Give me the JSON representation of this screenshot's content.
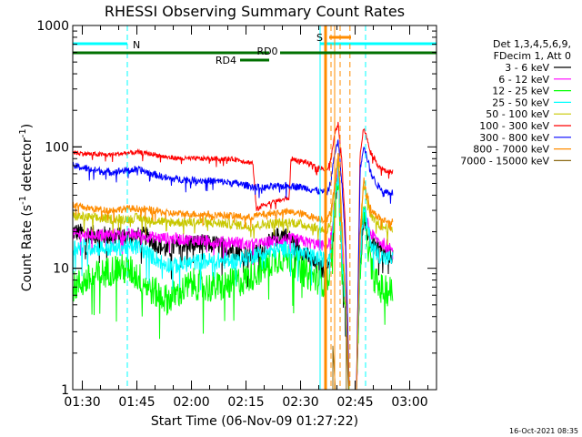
{
  "chart_data": {
    "type": "line",
    "title": "RHESSI Observing Summary Count Rates",
    "xlabel": "Start Time (06-Nov-09 01:27:22)",
    "ylabel": "Count Rate (s",
    "ylabel_sup": "-1",
    "ylabel_tail": " detector",
    "ylabel_sup2": "-1",
    "ylabel_close": ")",
    "yscale": "log",
    "xlim_minutes": [
      0,
      100
    ],
    "ylim": [
      1,
      1000
    ],
    "x_ticks": [
      {
        "minute": 2.63,
        "label": "01:30"
      },
      {
        "minute": 17.63,
        "label": "01:45"
      },
      {
        "minute": 32.63,
        "label": "02:00"
      },
      {
        "minute": 47.63,
        "label": "02:15"
      },
      {
        "minute": 62.63,
        "label": "02:30"
      },
      {
        "minute": 77.63,
        "label": "02:45"
      },
      {
        "minute": 92.63,
        "label": "03:00"
      }
    ],
    "y_ticks": [
      {
        "value": 1,
        "label": "1"
      },
      {
        "value": 10,
        "label": "10"
      },
      {
        "value": 100,
        "label": "100"
      },
      {
        "value": 1000,
        "label": "1000"
      }
    ],
    "legend_header": [
      "Det 1,3,4,5,6,9,",
      "FDecim 1, Att 0"
    ],
    "annotations": {
      "night": "N",
      "saa": "S",
      "rd0": "RD0",
      "rd4": "RD4"
    },
    "footer_timestamp": "16-Oct-2021 08:35",
    "flag_colors": {
      "night": "#00ffff",
      "saa": "#ff8c00",
      "decimation": "#007000"
    },
    "night_segments": [
      [
        0,
        15
      ],
      [
        68,
        100
      ]
    ],
    "night_boundaries": [
      0,
      15,
      68,
      80.5
    ],
    "saa_segment": [
      70.5,
      73.5
    ],
    "saa_lines": [
      69.5,
      72.0
    ],
    "rd0_segments": [
      [
        0,
        54
      ],
      [
        57,
        100
      ]
    ],
    "rd4_segment": [
      46,
      54
    ],
    "series": [
      {
        "name": "3 - 6 keV",
        "color": "#000000",
        "noise": 0.08,
        "points": [
          [
            0,
            20
          ],
          [
            5,
            19
          ],
          [
            10,
            18.5
          ],
          [
            15,
            18
          ],
          [
            20,
            18.5
          ],
          [
            23,
            16
          ],
          [
            26,
            14
          ],
          [
            30,
            16
          ],
          [
            35,
            16
          ],
          [
            40,
            15.5
          ],
          [
            45,
            14
          ],
          [
            48,
            13
          ],
          [
            50,
            13
          ],
          [
            52,
            14
          ],
          [
            54,
            16
          ],
          [
            56,
            18
          ],
          [
            58,
            19
          ],
          [
            60,
            17
          ],
          [
            62,
            15
          ],
          [
            64,
            13
          ],
          [
            66,
            11
          ],
          [
            68,
            10
          ],
          [
            70,
            10
          ],
          [
            71,
            14
          ],
          [
            72,
            30
          ],
          [
            73,
            60
          ],
          [
            74,
            12
          ],
          [
            75,
            5
          ],
          [
            76,
            1
          ]
        ]
      },
      {
        "name": "3 - 6 keV",
        "color": "#000000",
        "noise": 0.08,
        "points": [
          [
            78,
            1
          ],
          [
            79,
            10
          ],
          [
            80,
            25
          ],
          [
            82,
            16
          ],
          [
            84,
            14
          ],
          [
            86,
            13
          ],
          [
            88,
            13
          ]
        ]
      },
      {
        "name": "6 - 12 keV",
        "color": "#ff00ff",
        "noise": 0.05,
        "points": [
          [
            0,
            19
          ],
          [
            10,
            19
          ],
          [
            18,
            19
          ],
          [
            22,
            18
          ],
          [
            28,
            17.5
          ],
          [
            35,
            17
          ],
          [
            40,
            16.5
          ],
          [
            45,
            16.5
          ],
          [
            48,
            15.5
          ],
          [
            52,
            16
          ],
          [
            56,
            17
          ],
          [
            60,
            17.5
          ],
          [
            64,
            16.5
          ],
          [
            68,
            15.5
          ],
          [
            70,
            15
          ],
          [
            71,
            18
          ],
          [
            72,
            35
          ],
          [
            73,
            70
          ],
          [
            74,
            15
          ],
          [
            75,
            5
          ],
          [
            76,
            1
          ]
        ]
      },
      {
        "name": "6 - 12 keV",
        "color": "#ff00ff",
        "noise": 0.05,
        "points": [
          [
            78,
            1
          ],
          [
            79,
            12
          ],
          [
            80,
            32
          ],
          [
            82,
            19
          ],
          [
            85,
            16
          ],
          [
            88,
            15.5
          ]
        ]
      },
      {
        "name": "12 - 25 keV",
        "color": "#00ff00",
        "noise": 0.13,
        "points": [
          [
            0,
            7
          ],
          [
            4,
            8
          ],
          [
            8,
            9
          ],
          [
            12,
            10
          ],
          [
            16,
            9.5
          ],
          [
            19,
            8
          ],
          [
            22,
            6.5
          ],
          [
            26,
            5.5
          ],
          [
            28,
            6
          ],
          [
            30,
            6.5
          ],
          [
            33,
            7.5
          ],
          [
            36,
            7
          ],
          [
            40,
            7
          ],
          [
            44,
            7.5
          ],
          [
            47,
            8
          ],
          [
            50,
            9
          ],
          [
            52,
            10
          ],
          [
            54,
            11
          ],
          [
            56,
            12
          ],
          [
            58,
            12.5
          ],
          [
            60,
            12
          ],
          [
            62,
            10.5
          ],
          [
            64,
            9
          ],
          [
            66,
            8.5
          ],
          [
            68,
            8
          ],
          [
            70,
            7.5
          ],
          [
            71,
            12
          ],
          [
            72,
            30
          ],
          [
            73,
            55
          ],
          [
            74,
            10
          ],
          [
            75,
            5
          ],
          [
            76,
            1
          ]
        ]
      },
      {
        "name": "12 - 25 keV",
        "color": "#00ff00",
        "noise": 0.13,
        "points": [
          [
            78,
            1
          ],
          [
            79,
            10
          ],
          [
            80,
            30
          ],
          [
            82,
            10
          ],
          [
            84,
            7
          ],
          [
            86,
            6.5
          ],
          [
            88,
            6.5
          ]
        ]
      },
      {
        "name": "25 - 50 keV",
        "color": "#00ffff",
        "noise": 0.07,
        "points": [
          [
            0,
            15
          ],
          [
            5,
            15
          ],
          [
            10,
            14.5
          ],
          [
            15,
            15
          ],
          [
            18,
            15
          ],
          [
            21,
            13
          ],
          [
            25,
            11
          ],
          [
            28,
            10.5
          ],
          [
            32,
            11
          ],
          [
            36,
            11.5
          ],
          [
            40,
            11.5
          ],
          [
            44,
            11.5
          ],
          [
            47,
            12
          ],
          [
            50,
            13
          ],
          [
            53,
            13.5
          ],
          [
            56,
            14
          ],
          [
            59,
            14.5
          ],
          [
            62,
            13.5
          ],
          [
            65,
            12.5
          ],
          [
            68,
            12
          ],
          [
            70,
            11.5
          ],
          [
            71,
            15
          ],
          [
            72,
            35
          ],
          [
            73,
            65
          ],
          [
            74,
            12
          ],
          [
            75,
            5
          ],
          [
            76,
            1
          ]
        ]
      },
      {
        "name": "25 - 50 keV",
        "color": "#00ffff",
        "noise": 0.07,
        "points": [
          [
            78,
            1
          ],
          [
            79,
            12
          ],
          [
            80,
            30
          ],
          [
            82,
            16
          ],
          [
            84,
            13
          ],
          [
            86,
            12
          ],
          [
            88,
            12
          ]
        ]
      },
      {
        "name": "50 - 100 keV",
        "color": "#c8c800",
        "noise": 0.04,
        "points": [
          [
            0,
            27
          ],
          [
            5,
            26
          ],
          [
            10,
            25.5
          ],
          [
            15,
            25.5
          ],
          [
            18,
            26
          ],
          [
            22,
            25
          ],
          [
            26,
            24
          ],
          [
            30,
            24
          ],
          [
            35,
            24
          ],
          [
            40,
            23.5
          ],
          [
            45,
            23
          ],
          [
            48,
            22
          ],
          [
            50,
            22.5
          ],
          [
            53,
            23
          ],
          [
            56,
            23.5
          ],
          [
            60,
            24
          ],
          [
            63,
            23
          ],
          [
            66,
            22
          ],
          [
            68,
            21
          ],
          [
            70,
            20.5
          ],
          [
            71,
            25
          ],
          [
            72,
            45
          ],
          [
            73,
            80
          ],
          [
            74,
            20
          ],
          [
            75,
            6
          ],
          [
            76,
            1
          ]
        ]
      },
      {
        "name": "50 - 100 keV",
        "color": "#c8c800",
        "noise": 0.04,
        "points": [
          [
            78,
            1
          ],
          [
            79,
            18
          ],
          [
            80,
            50
          ],
          [
            82,
            26
          ],
          [
            85,
            22
          ],
          [
            88,
            21
          ]
        ]
      },
      {
        "name": "100 - 300 keV",
        "color": "#ff0000",
        "noise": 0.02,
        "points": [
          [
            0,
            90
          ],
          [
            5,
            87
          ],
          [
            10,
            86
          ],
          [
            15,
            89
          ],
          [
            18,
            90
          ],
          [
            22,
            87
          ],
          [
            26,
            82
          ],
          [
            30,
            80
          ],
          [
            35,
            80
          ],
          [
            40,
            80
          ],
          [
            45,
            79
          ],
          [
            48,
            75
          ],
          [
            49.5,
            74
          ],
          [
            50.5,
            30
          ],
          [
            52,
            33
          ],
          [
            55,
            35
          ],
          [
            58,
            37
          ],
          [
            59.5,
            38
          ],
          [
            60,
            80
          ],
          [
            64,
            75
          ],
          [
            67,
            68
          ],
          [
            70,
            65
          ],
          [
            71,
            80
          ],
          [
            72,
            125
          ],
          [
            73,
            155
          ],
          [
            74,
            75
          ],
          [
            75,
            20
          ],
          [
            76,
            1
          ]
        ]
      },
      {
        "name": "100 - 300 keV",
        "color": "#ff0000",
        "noise": 0.02,
        "points": [
          [
            78,
            1
          ],
          [
            79,
            90
          ],
          [
            80,
            145
          ],
          [
            82,
            90
          ],
          [
            84,
            70
          ],
          [
            86,
            63
          ],
          [
            88,
            62
          ]
        ]
      },
      {
        "name": "300 - 800 keV",
        "color": "#0000ff",
        "noise": 0.03,
        "points": [
          [
            0,
            70
          ],
          [
            5,
            65
          ],
          [
            10,
            62
          ],
          [
            15,
            64
          ],
          [
            18,
            65
          ],
          [
            22,
            60
          ],
          [
            26,
            55
          ],
          [
            30,
            54
          ],
          [
            35,
            53
          ],
          [
            40,
            52
          ],
          [
            45,
            50
          ],
          [
            48,
            48
          ],
          [
            50,
            47
          ],
          [
            52,
            46
          ],
          [
            56,
            47
          ],
          [
            60,
            48
          ],
          [
            64,
            46
          ],
          [
            68,
            43
          ],
          [
            70,
            42
          ],
          [
            71,
            52
          ],
          [
            72,
            90
          ],
          [
            73,
            110
          ],
          [
            74,
            50
          ],
          [
            75,
            15
          ],
          [
            76,
            1
          ]
        ]
      },
      {
        "name": "300 - 800 keV",
        "color": "#0000ff",
        "noise": 0.03,
        "points": [
          [
            78,
            1
          ],
          [
            79,
            65
          ],
          [
            80,
            105
          ],
          [
            82,
            60
          ],
          [
            84,
            47
          ],
          [
            86,
            43
          ],
          [
            88,
            42
          ]
        ]
      },
      {
        "name": "800 - 7000 keV",
        "color": "#ff8c00",
        "noise": 0.03,
        "points": [
          [
            0,
            33
          ],
          [
            5,
            31
          ],
          [
            10,
            30
          ],
          [
            15,
            31
          ],
          [
            18,
            31
          ],
          [
            22,
            30
          ],
          [
            26,
            28.5
          ],
          [
            30,
            28
          ],
          [
            35,
            28
          ],
          [
            40,
            27.5
          ],
          [
            45,
            27
          ],
          [
            48,
            26
          ],
          [
            50,
            27
          ],
          [
            53,
            28
          ],
          [
            56,
            29
          ],
          [
            60,
            29
          ],
          [
            63,
            28
          ],
          [
            66,
            26.5
          ],
          [
            68,
            25.5
          ],
          [
            70,
            25
          ],
          [
            71,
            30
          ],
          [
            72,
            50
          ],
          [
            73,
            90
          ],
          [
            74,
            25
          ],
          [
            75,
            6
          ],
          [
            76,
            1
          ]
        ]
      },
      {
        "name": "800 - 7000 keV",
        "color": "#ff8c00",
        "noise": 0.03,
        "points": [
          [
            78,
            1
          ],
          [
            79,
            20
          ],
          [
            80,
            55
          ],
          [
            82,
            30
          ],
          [
            85,
            25
          ],
          [
            88,
            24
          ]
        ]
      },
      {
        "name": "7000 - 15000 keV",
        "color": "#8b6914",
        "noise": 0,
        "points": [
          [
            71.5,
            1
          ],
          [
            71.5,
            2.3
          ],
          [
            72.2,
            1
          ],
          [
            75.2,
            1
          ],
          [
            75.2,
            2.8
          ],
          [
            75.8,
            1
          ]
        ]
      }
    ]
  }
}
